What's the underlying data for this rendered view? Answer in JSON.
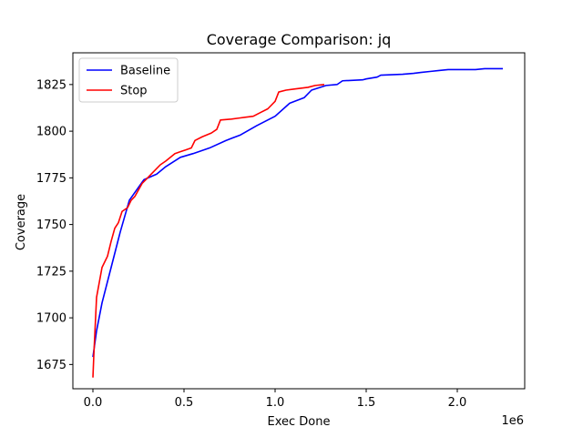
{
  "chart_data": {
    "type": "line",
    "title": "Coverage Comparison: jq",
    "xlabel": "Exec Done",
    "ylabel": "Coverage",
    "x_offset_label": "1e6",
    "xlim": [
      -110000,
      2370000
    ],
    "ylim": [
      1662,
      1842
    ],
    "xticks": [
      0,
      500000,
      1000000,
      1500000,
      2000000
    ],
    "xtick_labels": [
      "0.0",
      "0.5",
      "1.0",
      "1.5",
      "2.0"
    ],
    "yticks": [
      1675,
      1700,
      1725,
      1750,
      1775,
      1800,
      1825
    ],
    "ytick_labels": [
      "1675",
      "1700",
      "1725",
      "1750",
      "1775",
      "1800",
      "1825"
    ],
    "grid": false,
    "legend_position": "top-left",
    "series": [
      {
        "name": "Baseline",
        "color": "#0000ff",
        "x": [
          0,
          20000,
          50000,
          100000,
          150000,
          200000,
          280000,
          350000,
          400000,
          480000,
          550000,
          640000,
          730000,
          810000,
          900000,
          1000000,
          1080000,
          1160000,
          1200000,
          1280000,
          1340000,
          1370000,
          1480000,
          1500000,
          1560000,
          1580000,
          1700000,
          1760000,
          1800000,
          1850000,
          1900000,
          1950000,
          2000000,
          2050000,
          2100000,
          2150000,
          2200000,
          2250000
        ],
        "y": [
          1679,
          1693,
          1708,
          1727,
          1746,
          1763,
          1774,
          1777,
          1781,
          1786,
          1788,
          1791,
          1795,
          1798,
          1803,
          1808,
          1815,
          1818,
          1822,
          1824.5,
          1825,
          1827,
          1827.5,
          1828,
          1829,
          1830,
          1830.5,
          1831,
          1831.5,
          1832,
          1832.5,
          1833,
          1833,
          1833,
          1833,
          1833.5,
          1833.5,
          1833.5
        ]
      },
      {
        "name": "Stop",
        "color": "#ff0000",
        "x": [
          0,
          5000,
          20000,
          50000,
          80000,
          100000,
          120000,
          140000,
          160000,
          190000,
          210000,
          230000,
          270000,
          290000,
          330000,
          370000,
          400000,
          450000,
          480000,
          510000,
          540000,
          560000,
          600000,
          650000,
          680000,
          700000,
          760000,
          800000,
          840000,
          880000,
          920000,
          960000,
          1000000,
          1020000,
          1060000,
          1100000,
          1140000,
          1180000,
          1220000,
          1270000
        ],
        "y": [
          1668,
          1680,
          1711,
          1727,
          1733,
          1741,
          1748,
          1751,
          1757,
          1759,
          1763,
          1765,
          1772,
          1774,
          1778,
          1782,
          1784,
          1788,
          1789,
          1790,
          1791,
          1795,
          1797,
          1799,
          1801,
          1806,
          1806.5,
          1807,
          1807.5,
          1808,
          1810,
          1812,
          1816,
          1821,
          1822,
          1822.5,
          1823,
          1823.5,
          1824.5,
          1825
        ]
      }
    ]
  }
}
